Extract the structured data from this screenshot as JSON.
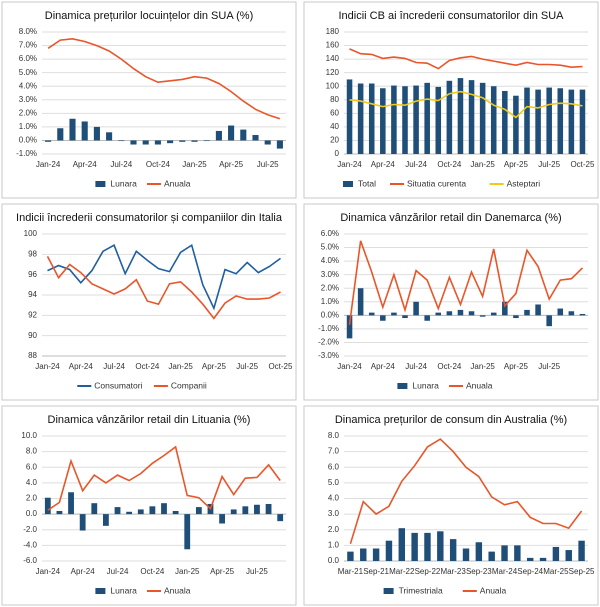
{
  "chart_data": [
    {
      "type": "combo",
      "title": "Dinamica prețurilor locuințelor din SUA (%)",
      "categories": [
        "Jan-24",
        null,
        null,
        "Apr-24",
        null,
        null,
        "Jul-24",
        null,
        null,
        "Oct-24",
        null,
        null,
        "Jan-25",
        null,
        null,
        "Apr-25",
        null,
        null,
        "Jul-25",
        null
      ],
      "series": [
        {
          "name": "Lunara",
          "type": "bar",
          "color": "#1f4e79",
          "values": [
            -0.1,
            0.9,
            1.6,
            1.4,
            1.0,
            0.6,
            0.0,
            -0.3,
            -0.3,
            -0.3,
            -0.2,
            -0.1,
            -0.1,
            0.0,
            0.7,
            1.1,
            0.8,
            0.4,
            -0.3,
            -0.6
          ]
        },
        {
          "name": "Anuala",
          "type": "line",
          "color": "#e8562a",
          "values": [
            6.8,
            7.4,
            7.5,
            7.3,
            7.0,
            6.6,
            6.0,
            5.3,
            4.7,
            4.3,
            4.4,
            4.5,
            4.7,
            4.6,
            4.2,
            3.6,
            2.9,
            2.3,
            1.9,
            1.6
          ]
        }
      ],
      "ylim": [
        -1,
        8
      ],
      "yticks": [
        {
          "value": -1,
          "label": "-1.0%"
        },
        {
          "value": 0,
          "label": "0.0%"
        },
        {
          "value": 1,
          "label": "1.0%"
        },
        {
          "value": 2,
          "label": "2.0%"
        },
        {
          "value": 3,
          "label": "3.0%"
        },
        {
          "value": 4,
          "label": "4.0%"
        },
        {
          "value": 5,
          "label": "5.0%"
        },
        {
          "value": 6,
          "label": "6.0%"
        },
        {
          "value": 7,
          "label": "7.0%"
        },
        {
          "value": 8,
          "label": "8.0%"
        }
      ],
      "grid": true
    },
    {
      "type": "combo",
      "title": "Indicii CB ai încrederii consumatorilor din SUA",
      "categories": [
        "Jan-24",
        null,
        null,
        "Apr-24",
        null,
        null,
        "Jul-24",
        null,
        null,
        "Oct-24",
        null,
        null,
        "Jan-25",
        null,
        null,
        "Apr-25",
        null,
        null,
        "Jul-25",
        null,
        null,
        "Oct-25"
      ],
      "series": [
        {
          "name": "Total",
          "type": "bar",
          "color": "#1f4e79",
          "values": [
            110,
            104,
            104,
            97,
            101,
            100,
            101,
            105,
            99,
            108,
            112,
            109,
            105,
            100,
            93,
            86,
            98,
            95,
            98,
            97,
            95,
            95
          ]
        },
        {
          "name": "Situatia curenta",
          "type": "line",
          "color": "#e8562a",
          "values": [
            155,
            148,
            147,
            141,
            143,
            141,
            135,
            134,
            126,
            138,
            142,
            144,
            140,
            137,
            134,
            131,
            135,
            132,
            132,
            131,
            128,
            129
          ]
        },
        {
          "name": "Asteptari",
          "type": "line",
          "color": "#f2c81a",
          "values": [
            80,
            78,
            74,
            70,
            73,
            72,
            78,
            81,
            79,
            89,
            92,
            88,
            83,
            72,
            66,
            54,
            70,
            68,
            73,
            75,
            74,
            71
          ]
        }
      ],
      "ylim": [
        0,
        180
      ],
      "yticks": [
        0,
        20,
        40,
        60,
        80,
        100,
        120,
        140,
        160,
        180
      ],
      "grid": true
    },
    {
      "type": "line",
      "title": "Indicii încrederii consumatorilor și companiilor din Italia",
      "categories": [
        "Jan-24",
        null,
        null,
        "Apr-24",
        null,
        null,
        "Jul-24",
        null,
        null,
        "Oct-24",
        null,
        null,
        "Jan-25",
        null,
        null,
        "Apr-25",
        null,
        null,
        "Jul-25",
        null,
        null,
        "Oct-25"
      ],
      "series": [
        {
          "name": "Consumatori",
          "type": "line",
          "color": "#1f5fa0",
          "values": [
            96.4,
            96.9,
            96.5,
            95.2,
            96.4,
            98.3,
            98.9,
            96.1,
            98.3,
            97.4,
            96.6,
            96.3,
            98.2,
            98.9,
            95.0,
            92.7,
            96.5,
            96.1,
            97.2,
            96.2,
            96.8,
            97.6
          ]
        },
        {
          "name": "Companii",
          "type": "line",
          "color": "#e8562a",
          "values": [
            97.8,
            95.7,
            97.0,
            96.2,
            95.1,
            94.6,
            94.1,
            94.6,
            95.5,
            93.4,
            93.1,
            95.1,
            95.3,
            94.3,
            93.1,
            91.7,
            93.2,
            93.9,
            93.6,
            93.6,
            93.7,
            94.3
          ]
        }
      ],
      "ylim": [
        88,
        100
      ],
      "yticks": [
        88,
        90,
        92,
        94,
        96,
        98,
        100
      ],
      "grid": true
    },
    {
      "type": "combo",
      "title": "Dinamica vânzărilor retail din Danemarca (%)",
      "categories": [
        "Jan-24",
        null,
        null,
        "Apr-24",
        null,
        null,
        "Jul-24",
        null,
        null,
        "Oct-24",
        null,
        null,
        "Jan-25",
        null,
        null,
        "Apr-25",
        null,
        null,
        "Jul-25",
        null,
        null,
        null
      ],
      "series": [
        {
          "name": "Lunara",
          "type": "bar",
          "color": "#1f4e79",
          "values": [
            -1.7,
            2.0,
            0.2,
            -0.4,
            0.2,
            -0.2,
            1.0,
            -0.4,
            0.2,
            0.3,
            0.4,
            0.3,
            -0.1,
            0.2,
            1.0,
            -0.2,
            0.4,
            0.8,
            -0.8,
            0.5,
            0.3,
            0.1
          ]
        },
        {
          "name": "Anuala",
          "type": "line",
          "color": "#e8562a",
          "values": [
            -0.7,
            5.5,
            3.2,
            0.6,
            3.0,
            0.4,
            3.3,
            2.6,
            0.5,
            2.8,
            0.8,
            3.2,
            1.4,
            4.9,
            0.7,
            1.6,
            4.8,
            3.6,
            1.2,
            2.6,
            2.7,
            3.5
          ]
        }
      ],
      "ylim": [
        -3,
        6
      ],
      "yticks": [
        {
          "value": -3,
          "label": "-3.0%"
        },
        {
          "value": -2,
          "label": "-2.0%"
        },
        {
          "value": -1,
          "label": "-1.0%"
        },
        {
          "value": 0,
          "label": "0.0%"
        },
        {
          "value": 1,
          "label": "1.0%"
        },
        {
          "value": 2,
          "label": "2.0%"
        },
        {
          "value": 3,
          "label": "3.0%"
        },
        {
          "value": 4,
          "label": "4.0%"
        },
        {
          "value": 5,
          "label": "5.0%"
        },
        {
          "value": 6,
          "label": "6.0%"
        }
      ],
      "grid": true
    },
    {
      "type": "combo",
      "title": "Dinamica vânzărilor retail din Lituania (%)",
      "categories": [
        "Jan-24",
        null,
        null,
        "Apr-24",
        null,
        null,
        "Jul-24",
        null,
        null,
        "Oct-24",
        null,
        null,
        "Jan-25",
        null,
        null,
        "Apr-25",
        null,
        null,
        "Jul-25",
        null,
        null
      ],
      "series": [
        {
          "name": "Lunara",
          "type": "bar",
          "color": "#1f4e79",
          "values": [
            2.1,
            0.4,
            2.8,
            -2.1,
            1.4,
            -1.5,
            0.9,
            0.3,
            0.6,
            1.0,
            1.4,
            0.4,
            -4.5,
            0.9,
            1.3,
            -1.2,
            0.6,
            1.0,
            1.2,
            1.3,
            -0.9
          ]
        },
        {
          "name": "Anuala",
          "type": "line",
          "color": "#e8562a",
          "values": [
            0.5,
            1.5,
            6.8,
            3.0,
            5.0,
            4.0,
            5.0,
            4.3,
            5.2,
            6.5,
            7.5,
            8.6,
            2.4,
            2.1,
            0.7,
            4.8,
            2.5,
            4.6,
            4.7,
            6.3,
            4.3
          ]
        }
      ],
      "ylim": [
        -6,
        10
      ],
      "yticks": [
        {
          "value": -6,
          "label": "-6.0"
        },
        {
          "value": -4,
          "label": "-4.0"
        },
        {
          "value": -2,
          "label": "-2.0"
        },
        {
          "value": 0,
          "label": "0.0"
        },
        {
          "value": 2,
          "label": "2.0"
        },
        {
          "value": 4,
          "label": "4.0"
        },
        {
          "value": 6,
          "label": "6.0"
        },
        {
          "value": 8,
          "label": "8.0"
        },
        {
          "value": 10,
          "label": "10.0"
        }
      ],
      "grid": true
    },
    {
      "type": "combo",
      "title": "Dinamica prețurilor de consum din Australia (%)",
      "categories": [
        "Mar-21",
        null,
        "Sep-21",
        null,
        "Mar-22",
        null,
        "Sep-22",
        null,
        "Mar-23",
        null,
        "Sep-23",
        null,
        "Mar-24",
        null,
        "Sep-24",
        null,
        "Mar-25",
        null,
        "Sep-25"
      ],
      "series": [
        {
          "name": "Trimestriala",
          "type": "bar",
          "color": "#1f4e79",
          "values": [
            0.6,
            0.8,
            0.8,
            1.3,
            2.1,
            1.8,
            1.8,
            1.9,
            1.4,
            0.8,
            1.2,
            0.6,
            1.0,
            1.0,
            0.2,
            0.2,
            0.9,
            0.7,
            1.3
          ]
        },
        {
          "name": "Anuala",
          "type": "line",
          "color": "#e8562a",
          "values": [
            1.1,
            3.8,
            3.0,
            3.5,
            5.1,
            6.1,
            7.3,
            7.8,
            7.0,
            6.0,
            5.4,
            4.1,
            3.6,
            3.8,
            2.8,
            2.4,
            2.4,
            2.1,
            3.2
          ]
        }
      ],
      "ylim": [
        0,
        8
      ],
      "yticks": [
        {
          "value": 0,
          "label": "0.0"
        },
        {
          "value": 1,
          "label": "1.0"
        },
        {
          "value": 2,
          "label": "2.0"
        },
        {
          "value": 3,
          "label": "3.0"
        },
        {
          "value": 4,
          "label": "4.0"
        },
        {
          "value": 5,
          "label": "5.0"
        },
        {
          "value": 6,
          "label": "6.0"
        },
        {
          "value": 7,
          "label": "7.0"
        },
        {
          "value": 8,
          "label": "8.0"
        }
      ],
      "grid": true
    }
  ]
}
